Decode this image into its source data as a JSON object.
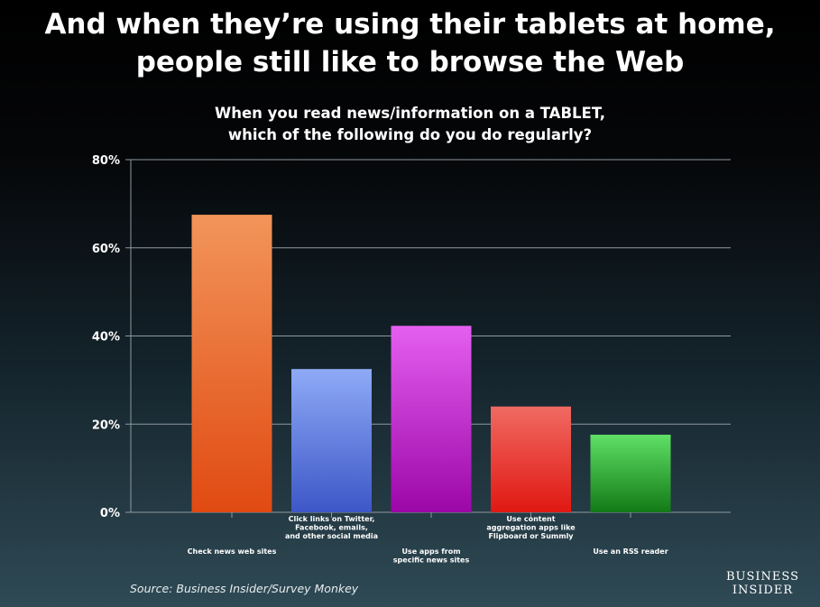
{
  "headline": {
    "line1": "And when they’re using their tablets at home,",
    "line2": "people still like to browse the Web"
  },
  "source": "Source: Business Insider/Survey Monkey",
  "logo": {
    "line1": "BUSINESS",
    "line2": "INSIDER"
  },
  "chart_data": {
    "type": "bar",
    "title": [
      "When you read news/information on a TABLET,",
      "which of the following do you do regularly?"
    ],
    "categories": [
      [
        "Check news web sites"
      ],
      [
        "Click links on Twitter,",
        "Facebook, emails,",
        "and other social media"
      ],
      [
        "Use apps from",
        "specific news sites"
      ],
      [
        "Use content",
        "aggregation apps like",
        "Flipboard or Summly"
      ],
      [
        "Use an RSS reader"
      ]
    ],
    "values": [
      67.5,
      32.5,
      42.3,
      24.0,
      17.6
    ],
    "ylim": [
      0,
      80
    ],
    "yticks": [
      0,
      20,
      40,
      60,
      80
    ],
    "ytick_labels": [
      "0%",
      "20%",
      "40%",
      "60%",
      "80%"
    ],
    "grid": true,
    "colors": [
      [
        "#f2955a",
        "#e04a12"
      ],
      [
        "#8eaaf6",
        "#3d57c7"
      ],
      [
        "#e45ff0",
        "#9c07a8"
      ],
      [
        "#f06a62",
        "#e01812"
      ],
      [
        "#5fe066",
        "#137a16"
      ]
    ]
  }
}
